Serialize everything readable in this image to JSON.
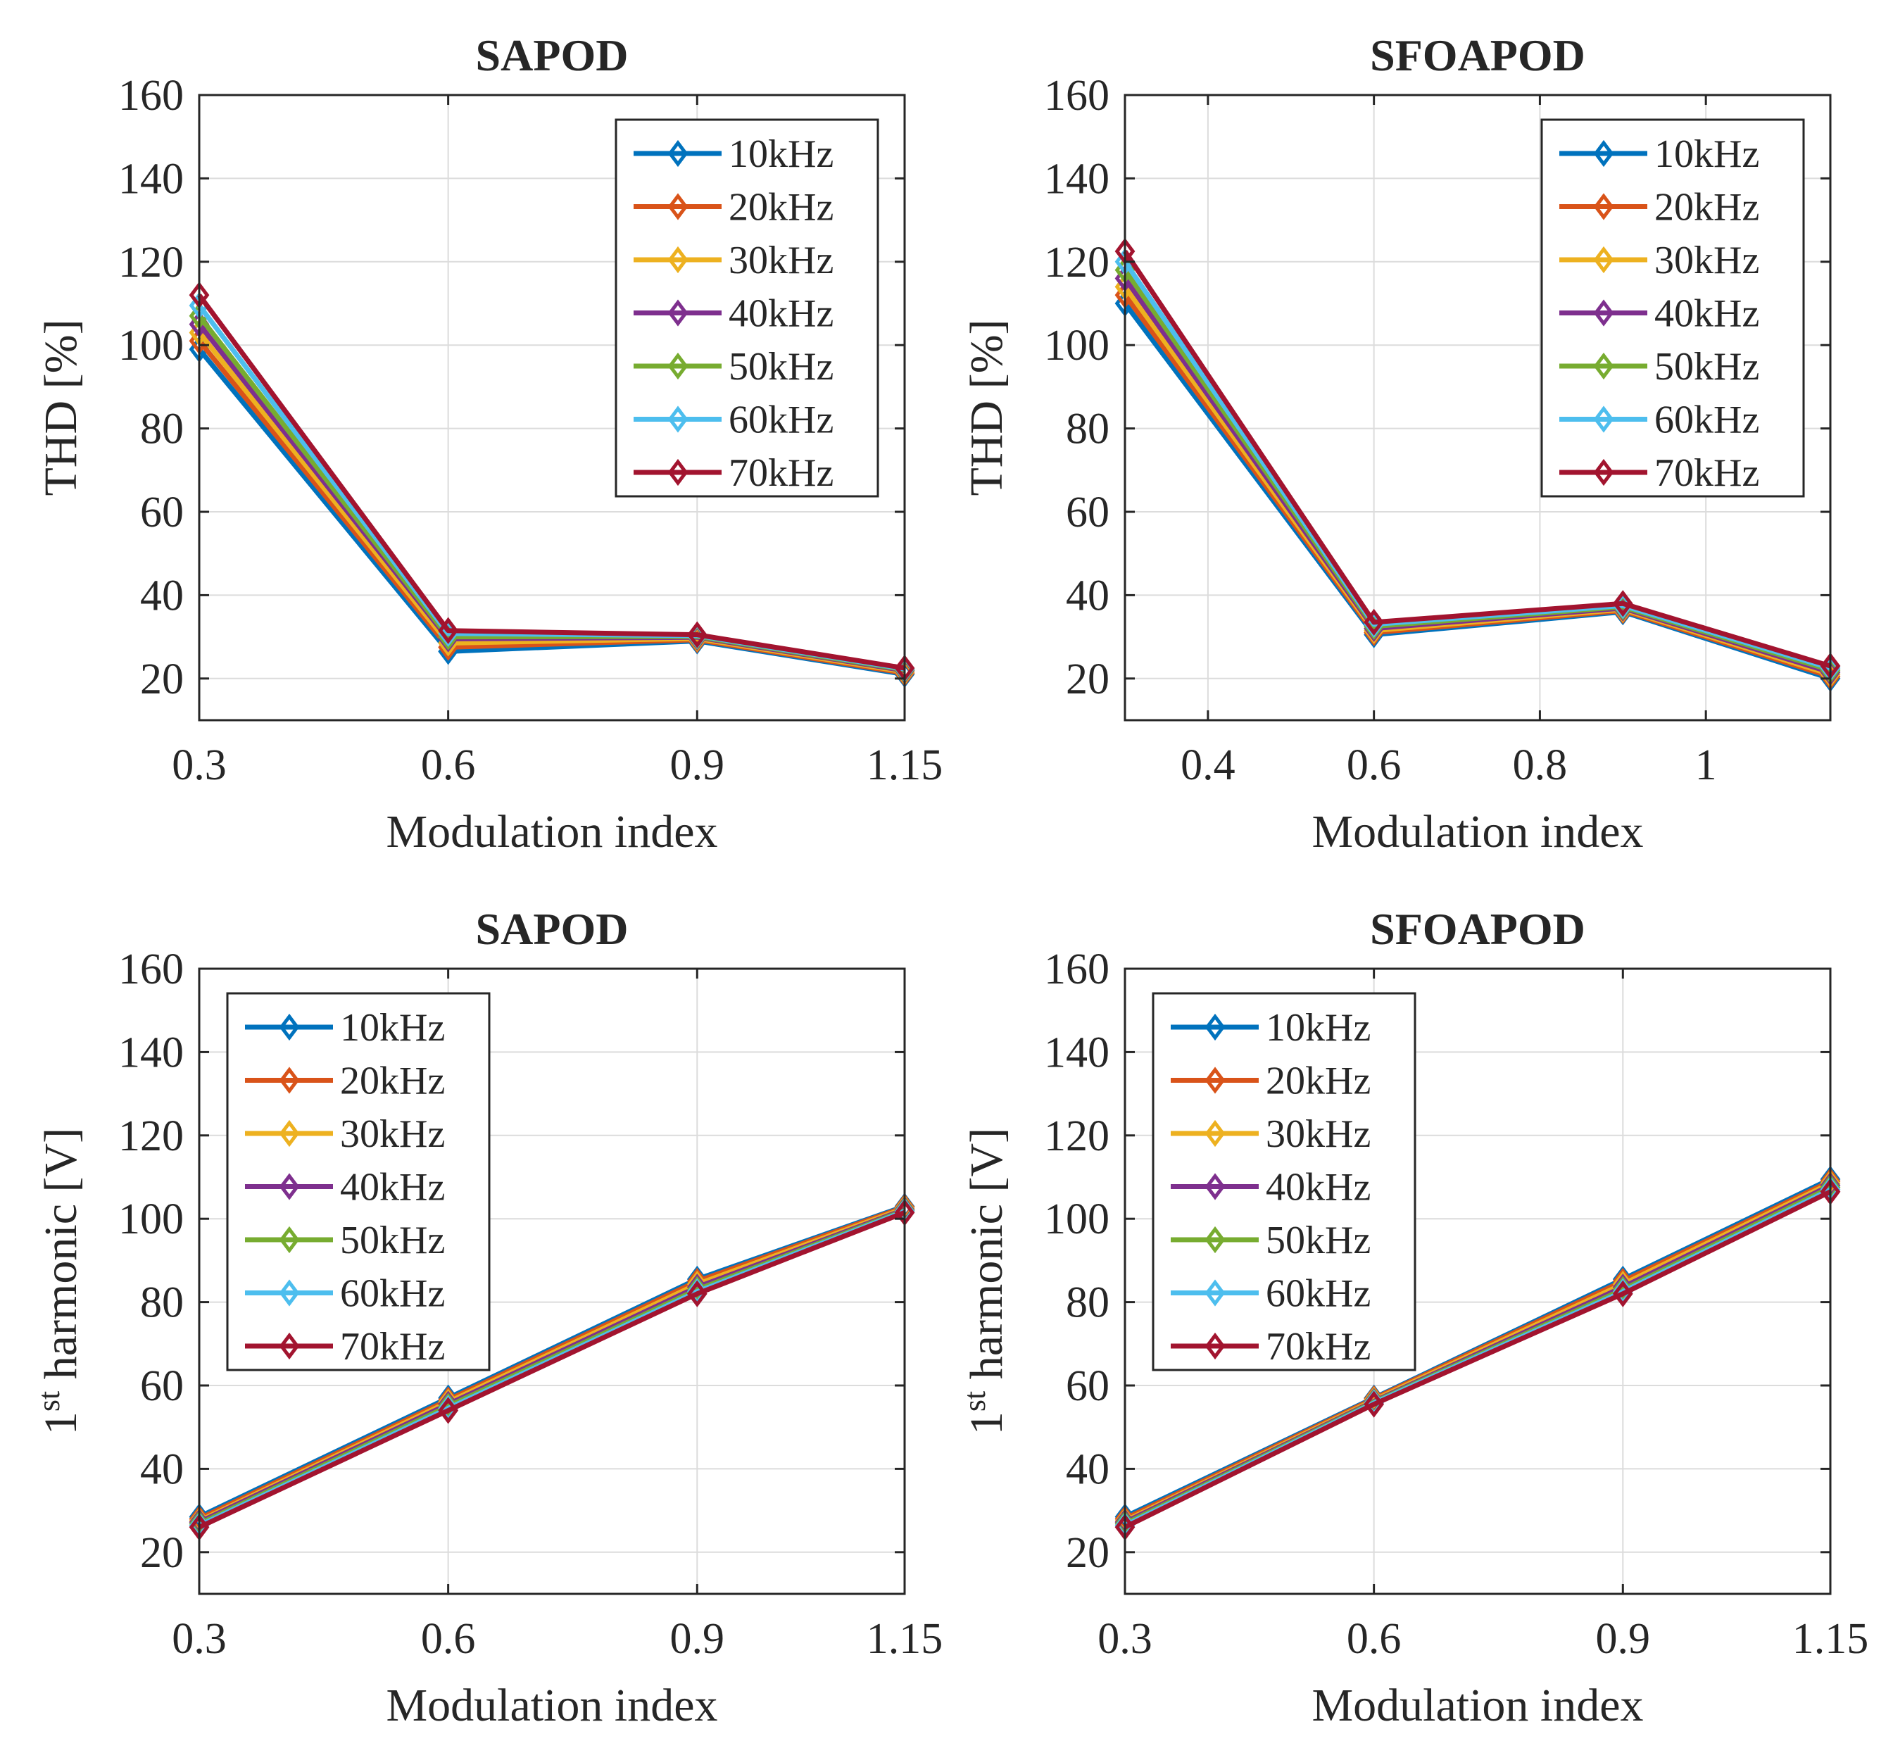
{
  "figure": {
    "description_free": true
  },
  "series_styles": [
    {
      "name": "10kHz",
      "color": "#0072BD"
    },
    {
      "name": "20kHz",
      "color": "#D95319"
    },
    {
      "name": "30kHz",
      "color": "#EDB120"
    },
    {
      "name": "40kHz",
      "color": "#7E2F8E"
    },
    {
      "name": "50kHz",
      "color": "#77AC30"
    },
    {
      "name": "60kHz",
      "color": "#4DBEEE"
    },
    {
      "name": "70kHz",
      "color": "#A2142F"
    }
  ],
  "chart_data": [
    {
      "id": "sapod-thd",
      "type": "line",
      "title": "SAPOD",
      "xlabel": "Modulation index",
      "ylabel": "THD [%]",
      "ylabel_superscript": "",
      "ylabel_rest": "",
      "xlim": [
        0.3,
        1.15
      ],
      "ylim": [
        10,
        160
      ],
      "xticks": [
        0.3,
        0.6,
        0.9,
        1.15
      ],
      "xtick_labels": [
        "0.3",
        "0.6",
        "0.9",
        "1.15"
      ],
      "yticks": [
        20,
        40,
        60,
        80,
        100,
        120,
        140,
        160
      ],
      "ytick_labels": [
        "20",
        "40",
        "60",
        "80",
        "100",
        "120",
        "140",
        "160"
      ],
      "legend_position": "top-right",
      "x": [
        0.3,
        0.6,
        0.9,
        1.15
      ],
      "series": [
        {
          "name": "10kHz",
          "values": [
            99,
            26.5,
            29,
            21
          ]
        },
        {
          "name": "20kHz",
          "values": [
            101,
            27.5,
            29.3,
            21.3
          ]
        },
        {
          "name": "30kHz",
          "values": [
            103,
            28.5,
            29.6,
            21.6
          ]
        },
        {
          "name": "40kHz",
          "values": [
            105,
            29.5,
            29.9,
            21.9
          ]
        },
        {
          "name": "50kHz",
          "values": [
            107,
            30,
            30.1,
            22.1
          ]
        },
        {
          "name": "60kHz",
          "values": [
            109.5,
            30.8,
            30.3,
            22.3
          ]
        },
        {
          "name": "70kHz",
          "values": [
            112,
            31.5,
            30.5,
            22.5
          ]
        }
      ]
    },
    {
      "id": "sfoapod-thd",
      "type": "line",
      "title": "SFOAPOD",
      "xlabel": "Modulation index",
      "ylabel": "THD [%]",
      "ylabel_superscript": "",
      "ylabel_rest": "",
      "xlim": [
        0.3,
        1.15
      ],
      "ylim": [
        10,
        160
      ],
      "xticks": [
        0.4,
        0.6,
        0.8,
        1.0
      ],
      "xtick_labels": [
        "0.4",
        "0.6",
        "0.8",
        "1"
      ],
      "yticks": [
        20,
        40,
        60,
        80,
        100,
        120,
        140,
        160
      ],
      "ytick_labels": [
        "20",
        "40",
        "60",
        "80",
        "100",
        "120",
        "140",
        "160"
      ],
      "legend_position": "top-right",
      "x": [
        0.3,
        0.6,
        0.9,
        1.15
      ],
      "series": [
        {
          "name": "10kHz",
          "values": [
            110,
            30.5,
            36,
            20
          ]
        },
        {
          "name": "20kHz",
          "values": [
            112,
            31,
            36.3,
            20.5
          ]
        },
        {
          "name": "30kHz",
          "values": [
            114,
            31.5,
            36.6,
            21
          ]
        },
        {
          "name": "40kHz",
          "values": [
            116,
            32,
            36.9,
            21.5
          ]
        },
        {
          "name": "50kHz",
          "values": [
            118,
            32.5,
            37.2,
            22
          ]
        },
        {
          "name": "60kHz",
          "values": [
            120,
            33,
            37.5,
            22.5
          ]
        },
        {
          "name": "70kHz",
          "values": [
            122.5,
            33.5,
            38,
            23
          ]
        }
      ]
    },
    {
      "id": "sapod-harmonic",
      "type": "line",
      "title": "SAPOD",
      "xlabel": "Modulation index",
      "ylabel": "",
      "ylabel_superscript": "st",
      "ylabel_rest": " harmonic [V]",
      "ylabel_lead": "1",
      "xlim": [
        0.3,
        1.15
      ],
      "ylim": [
        10,
        160
      ],
      "xticks": [
        0.3,
        0.6,
        0.9,
        1.15
      ],
      "xtick_labels": [
        "0.3",
        "0.6",
        "0.9",
        "1.15"
      ],
      "yticks": [
        20,
        40,
        60,
        80,
        100,
        120,
        140,
        160
      ],
      "ytick_labels": [
        "20",
        "40",
        "60",
        "80",
        "100",
        "120",
        "140",
        "160"
      ],
      "legend_position": "top-left",
      "x": [
        0.3,
        0.6,
        0.9,
        1.15
      ],
      "series": [
        {
          "name": "10kHz",
          "values": [
            28.5,
            57,
            85.5,
            103
          ]
        },
        {
          "name": "20kHz",
          "values": [
            28,
            56.5,
            85,
            102.8
          ]
        },
        {
          "name": "30kHz",
          "values": [
            27.5,
            56,
            84.3,
            102.5
          ]
        },
        {
          "name": "40kHz",
          "values": [
            27.2,
            55.5,
            83.6,
            102.2
          ]
        },
        {
          "name": "50kHz",
          "values": [
            26.8,
            55,
            83,
            102
          ]
        },
        {
          "name": "60kHz",
          "values": [
            26.4,
            54.5,
            82.5,
            101.8
          ]
        },
        {
          "name": "70kHz",
          "values": [
            26,
            54,
            82,
            101.5
          ]
        }
      ]
    },
    {
      "id": "sfoapod-harmonic",
      "type": "line",
      "title": "SFOAPOD",
      "xlabel": "Modulation index",
      "ylabel": "",
      "ylabel_superscript": "st",
      "ylabel_rest": " harmonic [V]",
      "ylabel_lead": "1",
      "xlim": [
        0.3,
        1.15
      ],
      "ylim": [
        10,
        160
      ],
      "xticks": [
        0.3,
        0.6,
        0.9,
        1.15
      ],
      "xtick_labels": [
        "0.3",
        "0.6",
        "0.9",
        "1.15"
      ],
      "yticks": [
        20,
        40,
        60,
        80,
        100,
        120,
        140,
        160
      ],
      "ytick_labels": [
        "20",
        "40",
        "60",
        "80",
        "100",
        "120",
        "140",
        "160"
      ],
      "legend_position": "top-left",
      "x": [
        0.3,
        0.6,
        0.9,
        1.15
      ],
      "series": [
        {
          "name": "10kHz",
          "values": [
            28.5,
            57,
            85.5,
            109.5
          ]
        },
        {
          "name": "20kHz",
          "values": [
            28,
            56.8,
            85,
            109
          ]
        },
        {
          "name": "30kHz",
          "values": [
            27.5,
            56.5,
            84.3,
            108.5
          ]
        },
        {
          "name": "40kHz",
          "values": [
            27.2,
            56.2,
            83.6,
            108
          ]
        },
        {
          "name": "50kHz",
          "values": [
            26.8,
            56,
            83,
            107.5
          ]
        },
        {
          "name": "60kHz",
          "values": [
            26.4,
            55.8,
            82.5,
            107
          ]
        },
        {
          "name": "70kHz",
          "values": [
            26,
            55.5,
            82,
            106.5
          ]
        }
      ]
    }
  ]
}
